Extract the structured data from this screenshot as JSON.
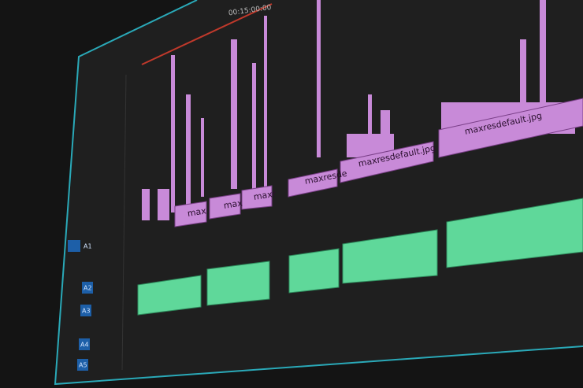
{
  "timecode": "00:15:00:00",
  "clips": [
    {
      "label": "max"
    },
    {
      "label": "max"
    },
    {
      "label": "maxr"
    },
    {
      "label": "maxresde"
    },
    {
      "label": "maxresdefault.jpg"
    },
    {
      "label": "maxresdefault.jpg"
    }
  ],
  "tracks": [
    "A1",
    "A2",
    "A3",
    "A4",
    "A5"
  ]
}
